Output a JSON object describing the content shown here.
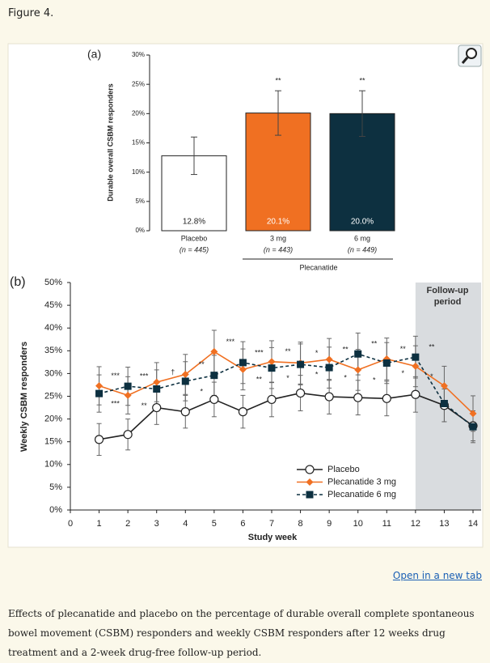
{
  "figure_label": "Figure 4.",
  "link": "Open in a new tab",
  "caption": "Effects of plecanatide and placebo on the percentage of durable overall complete spontaneous bowel movement (CSBM) responders and weekly CSBM responders after 12 weeks drug treatment and a 2-week drug-free follow-up period.",
  "chart_data": [
    {
      "type": "bar",
      "panel_label": "(a)",
      "y_label": "Durable overall CSBM responders",
      "categories": [
        "Placebo",
        "3 mg",
        "6 mg"
      ],
      "category_sublabels": [
        "(n = 445)",
        "(n = 443)",
        "(n = 449)"
      ],
      "group_label": "Plecanatide",
      "values": [
        12.8,
        20.1,
        20.0
      ],
      "value_labels": [
        "12.8%",
        "20.1%",
        "20.0%"
      ],
      "errors": [
        3.2,
        3.8,
        3.9
      ],
      "significance": [
        null,
        "**",
        "**"
      ],
      "colors": [
        "#ffffff",
        "#f07022",
        "#0d3040"
      ],
      "ylim": [
        0,
        30
      ],
      "yticks": [
        {
          "value": 0,
          "label": "0%"
        },
        {
          "value": 5,
          "label": "5%"
        },
        {
          "value": 10,
          "label": "10%"
        },
        {
          "value": 15,
          "label": "15%"
        },
        {
          "value": 20,
          "label": "20%"
        },
        {
          "value": 25,
          "label": "25%"
        },
        {
          "value": 30,
          "label": "30%"
        }
      ]
    },
    {
      "type": "line",
      "panel_label": "(b)",
      "x_label": "Study week",
      "y_label": "Weekly CSBM responders",
      "x": [
        1,
        2,
        3,
        4,
        5,
        6,
        7,
        8,
        9,
        10,
        11,
        12,
        13,
        14
      ],
      "xlim": [
        0,
        14
      ],
      "xticks": [
        0,
        1,
        2,
        3,
        4,
        5,
        6,
        7,
        8,
        9,
        10,
        11,
        12,
        13,
        14
      ],
      "ylim": [
        0,
        50
      ],
      "yticks": [
        {
          "value": 0,
          "label": "0%"
        },
        {
          "value": 5,
          "label": "5%"
        },
        {
          "value": 10,
          "label": "10%"
        },
        {
          "value": 15,
          "label": "15%"
        },
        {
          "value": 20,
          "label": "20%"
        },
        {
          "value": 25,
          "label": "25%"
        },
        {
          "value": 30,
          "label": "30%"
        },
        {
          "value": 35,
          "label": "35%"
        },
        {
          "value": 40,
          "label": "40%"
        },
        {
          "value": 45,
          "label": "45%"
        },
        {
          "value": 50,
          "label": "50%"
        }
      ],
      "shaded_region": {
        "from": 12,
        "to": 14,
        "label": "Follow-up period",
        "color": "#d9dcdf"
      },
      "legend": "lower right",
      "series": [
        {
          "name": "Placebo",
          "color": "#222222",
          "marker": "circle",
          "line_style": "solid",
          "values": [
            15.5,
            16.6,
            22.5,
            21.6,
            24.3,
            21.6,
            24.3,
            25.7,
            24.9,
            24.7,
            24.5,
            25.4,
            23.0,
            18.5
          ],
          "errors": [
            3.5,
            3.4,
            3.7,
            3.6,
            3.8,
            3.6,
            3.8,
            3.9,
            3.8,
            3.8,
            3.8,
            3.9,
            3.6,
            3.3
          ],
          "significance": [
            null,
            null,
            null,
            null,
            null,
            null,
            null,
            null,
            null,
            null,
            null,
            null,
            null,
            null
          ]
        },
        {
          "name": "Plecanatide 3 mg",
          "color": "#f07022",
          "marker": "diamond",
          "line_style": "solid",
          "values": [
            27.3,
            25.2,
            28.1,
            29.8,
            34.8,
            30.9,
            32.6,
            32.3,
            33.1,
            30.8,
            33.2,
            31.6,
            27.3,
            21.2
          ],
          "errors": [
            4.2,
            4.1,
            4.3,
            4.4,
            4.7,
            4.5,
            4.6,
            4.6,
            4.6,
            4.5,
            4.6,
            4.5,
            4.3,
            3.9
          ],
          "significance": [
            "***",
            "***",
            "†",
            "**",
            "***",
            "***",
            "**",
            "*",
            "**",
            "**",
            "**",
            "**",
            null,
            null
          ]
        },
        {
          "name": "Plecanatide 6 mg",
          "color": "#0d3040",
          "marker": "square",
          "line_style": "dashed",
          "values": [
            25.6,
            27.2,
            26.6,
            28.3,
            29.6,
            32.4,
            31.2,
            32.0,
            31.3,
            34.3,
            32.3,
            33.6,
            23.4,
            18.3
          ],
          "errors": [
            4.1,
            4.2,
            4.2,
            4.3,
            4.4,
            4.6,
            4.5,
            4.5,
            4.5,
            4.6,
            4.5,
            4.6,
            4.0,
            3.5
          ],
          "significance": [
            "***",
            "**",
            null,
            "*",
            null,
            "**",
            "*",
            "*",
            "*",
            "*",
            "*",
            "*",
            null,
            null
          ]
        }
      ]
    }
  ]
}
